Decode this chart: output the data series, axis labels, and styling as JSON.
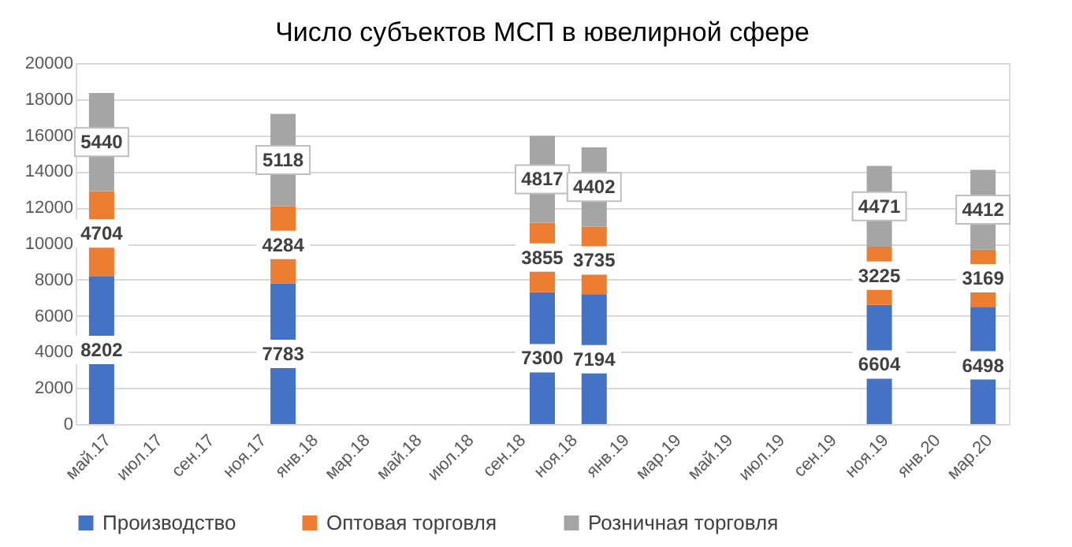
{
  "chart_data": {
    "type": "bar",
    "title": "Число  субъектов МСП в ювелирной сфере",
    "stacked": true,
    "categories": [
      "май.17",
      null,
      "июл.17",
      null,
      "сен.17",
      null,
      "ноя.17",
      null,
      "янв.18",
      null,
      "мар.18",
      null,
      "май.18",
      null,
      "июл.18",
      null,
      "сен.18",
      null,
      "ноя.18",
      null,
      "янв.19",
      null,
      "мар.19",
      null,
      "май.19",
      null,
      "июл.19",
      null,
      "сен.19",
      null,
      "ноя.19",
      null,
      "янв.20",
      null,
      "мар.20"
    ],
    "series": [
      {
        "name": "Производство",
        "color": "#4472c4",
        "values": [
          8202,
          null,
          null,
          null,
          null,
          null,
          null,
          7783,
          null,
          null,
          null,
          null,
          null,
          null,
          null,
          null,
          null,
          7300,
          null,
          7194,
          null,
          null,
          null,
          null,
          null,
          null,
          null,
          null,
          null,
          null,
          6604,
          null,
          null,
          null,
          6498
        ]
      },
      {
        "name": "Оптовая торговля",
        "color": "#ed7d31",
        "values": [
          4704,
          null,
          null,
          null,
          null,
          null,
          null,
          4284,
          null,
          null,
          null,
          null,
          null,
          null,
          null,
          null,
          null,
          3855,
          null,
          3735,
          null,
          null,
          null,
          null,
          null,
          null,
          null,
          null,
          null,
          null,
          3225,
          null,
          null,
          null,
          3169
        ]
      },
      {
        "name": "Розничная торговля",
        "color": "#a5a5a5",
        "values": [
          5440,
          null,
          null,
          null,
          null,
          null,
          null,
          5118,
          null,
          null,
          null,
          null,
          null,
          null,
          null,
          null,
          null,
          4817,
          null,
          4402,
          null,
          null,
          null,
          null,
          null,
          null,
          null,
          null,
          null,
          null,
          4471,
          null,
          null,
          null,
          4412
        ]
      }
    ],
    "ylim": [
      0,
      20000
    ],
    "yticks": [
      0,
      2000,
      4000,
      6000,
      8000,
      10000,
      12000,
      14000,
      16000,
      18000,
      20000
    ],
    "grid": "y",
    "legend": "bottom",
    "data_labels": true
  }
}
